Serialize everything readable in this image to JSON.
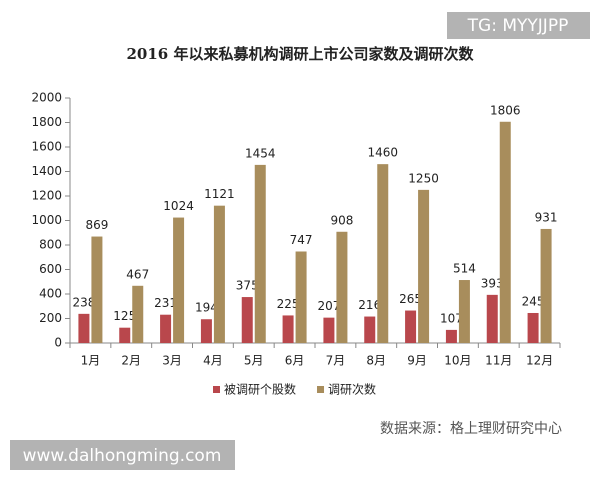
{
  "chart_data": {
    "type": "bar",
    "title": "2016 年以来私募机构调研上市公司家数及调研次数",
    "categories": [
      "1月",
      "2月",
      "3月",
      "4月",
      "5月",
      "6月",
      "7月",
      "8月",
      "9月",
      "10月",
      "11月",
      "12月"
    ],
    "series": [
      {
        "name": "被调研个股数",
        "color": "#b9474c",
        "values": [
          238,
          125,
          231,
          194,
          375,
          225,
          207,
          216,
          265,
          107,
          393,
          245
        ]
      },
      {
        "name": "调研次数",
        "color": "#a88d5c",
        "values": [
          869,
          467,
          1024,
          1121,
          1454,
          747,
          908,
          1460,
          1250,
          514,
          1806,
          931
        ]
      }
    ],
    "ylim": [
      0,
      2000
    ],
    "yticks": [
      0,
      200,
      400,
      600,
      800,
      1000,
      1200,
      1400,
      1600,
      1800,
      2000
    ],
    "grid": false,
    "legend": "bottom",
    "data_labels": true,
    "source": "数据来源：格上理财研究中心"
  },
  "watermarks": [
    "TG: MYYJJPP",
    "www.dalhongming.com"
  ]
}
